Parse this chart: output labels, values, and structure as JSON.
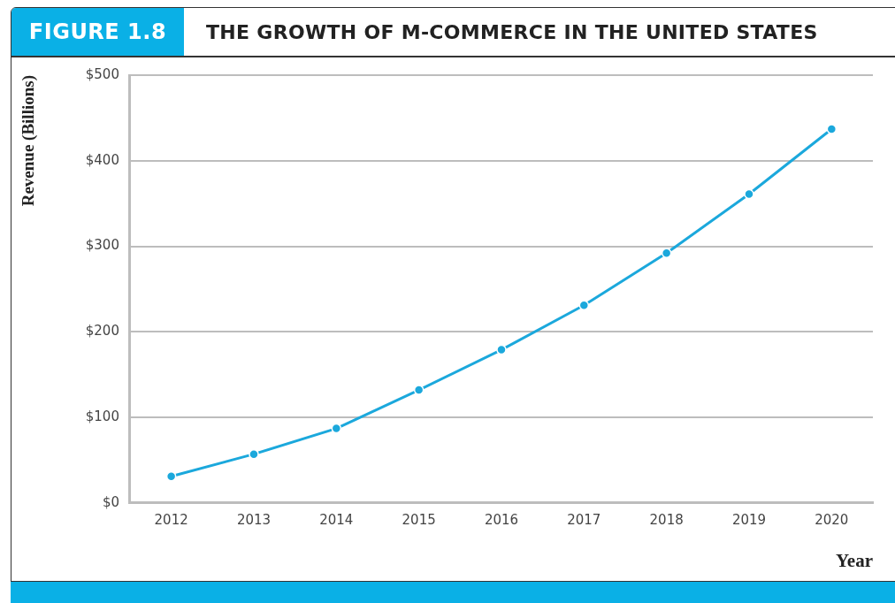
{
  "chart_data": {
    "type": "line",
    "title": "THE GROWTH OF M-COMMERCE IN THE UNITED STATES",
    "subtitle": "FIGURE 1.8",
    "xlabel": "Year",
    "ylabel": "Revenue (Billions)",
    "categories": [
      "2012",
      "2013",
      "2014",
      "2015",
      "2016",
      "2017",
      "2018",
      "2019",
      "2020"
    ],
    "series": [
      {
        "color": "#1ba8dc",
        "values": [
          31,
          57,
          87,
          132,
          179,
          231,
          292,
          361,
          437
        ]
      }
    ],
    "ylim": [
      0,
      500
    ],
    "yticks": [
      {
        "value": 0,
        "label": "$0"
      },
      {
        "value": 100,
        "label": "$100"
      },
      {
        "value": 200,
        "label": "$200"
      },
      {
        "value": 300,
        "label": "$300"
      },
      {
        "value": 400,
        "label": "$400"
      },
      {
        "value": 500,
        "label": "$500"
      }
    ],
    "grid": "y",
    "legend": false,
    "marker": "circle",
    "line_style": "solid"
  }
}
